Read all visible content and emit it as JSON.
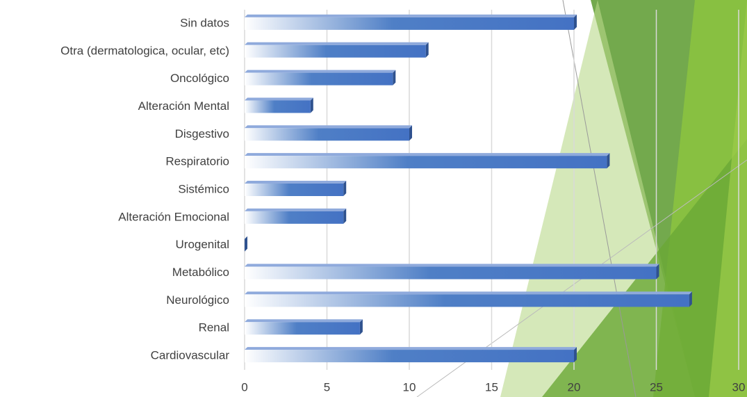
{
  "chart_data": {
    "type": "bar",
    "orientation": "horizontal",
    "categories": [
      "Sin datos",
      "Otra (dermatologica, ocular, etc)",
      "Oncológico",
      "Alteración Mental",
      "Disgestivo",
      "Respiratorio",
      "Sistémico",
      "Alteración Emocional",
      "Urogenital",
      "Metabólico",
      "Neurológico",
      "Renal",
      "Cardiovascular"
    ],
    "values": [
      20,
      11,
      9,
      4,
      10,
      22,
      6,
      6,
      0,
      25,
      27,
      7,
      20
    ],
    "color": "#4472c4",
    "xlim": [
      0,
      30
    ],
    "xticks": [
      0,
      5,
      10,
      15,
      20,
      25,
      30
    ],
    "grid": true
  }
}
